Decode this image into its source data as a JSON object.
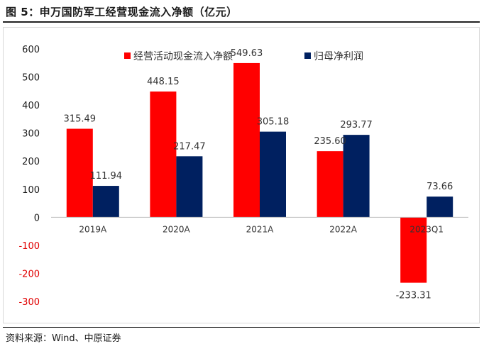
{
  "figure": {
    "title": "图 5：申万国防军工经营现金流入净额（亿元）",
    "source": "资料来源：Wind、中原证券"
  },
  "colors": {
    "series1": "#ff0000",
    "series2": "#002060",
    "negative_tick": "#e00000"
  },
  "chart_data": {
    "type": "bar",
    "categories": [
      "2019A",
      "2020A",
      "2021A",
      "2022A",
      "2023Q1"
    ],
    "series": [
      {
        "name": "经营活动现金流入净额",
        "values": [
          315.49,
          448.15,
          549.63,
          235.6,
          -233.31
        ]
      },
      {
        "name": "归母净利润",
        "values": [
          111.94,
          217.47,
          305.18,
          293.77,
          73.66
        ]
      }
    ],
    "value_labels": [
      [
        "315.49",
        "448.15",
        "549.63",
        "235.60",
        "-233.31"
      ],
      [
        "111.94",
        "217.47",
        "305.18",
        "293.77",
        "73.66"
      ]
    ],
    "ylim": [
      -300,
      600
    ],
    "yticks": [
      "600",
      "500",
      "400",
      "300",
      "200",
      "100",
      "0",
      "-100",
      "-200",
      "-300"
    ],
    "ytick_values": [
      600,
      500,
      400,
      300,
      200,
      100,
      0,
      -100,
      -200,
      -300
    ],
    "legend_position": "top",
    "grid": false
  }
}
